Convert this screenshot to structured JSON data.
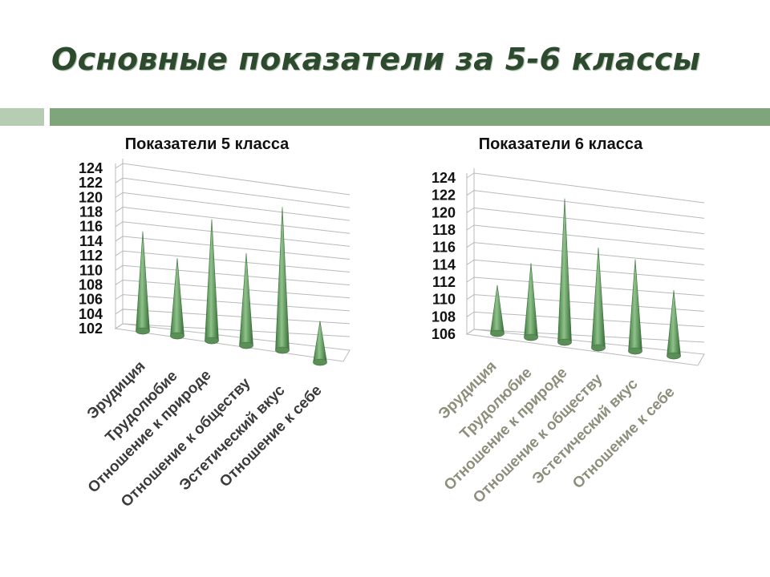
{
  "slide": {
    "title": "Основные показатели за 5-6 классы",
    "colors": {
      "title": "#2e4a2e",
      "accent_bar": "#7ea67a",
      "accent_bar_light": "#b6ccb3",
      "cone": "#5f9a5d"
    }
  },
  "chart_data": [
    {
      "type": "bar",
      "shape": "cone-3d",
      "title": "Показатели 5 класса",
      "categories": [
        "Эрудиция",
        "Трудолюбие",
        "Отношение к природе",
        "Отношение к обществу",
        "Эстетический вкус",
        "Отношение к себе"
      ],
      "values": [
        115,
        112,
        118,
        114,
        121,
        107
      ],
      "ylim": [
        102,
        124
      ],
      "yticks": [
        102,
        104,
        106,
        108,
        110,
        112,
        114,
        116,
        118,
        120,
        122,
        124
      ],
      "xlabel": "",
      "ylabel": "",
      "grid": true,
      "category_label_color": "#3b3b3b"
    },
    {
      "type": "bar",
      "shape": "cone-3d",
      "title": "Показатели 6 класса",
      "categories": [
        "Эрудиция",
        "Трудолюбие",
        "Отношение к природе",
        "Отношение к обществу",
        "Эстетический вкус",
        "Отношение к себе"
      ],
      "values": [
        111,
        114,
        122,
        117,
        116,
        113
      ],
      "ylim": [
        106,
        124
      ],
      "yticks": [
        106,
        108,
        110,
        112,
        114,
        116,
        118,
        120,
        122,
        124
      ],
      "xlabel": "",
      "ylabel": "",
      "grid": true,
      "category_label_color": "#8e8e7c"
    }
  ]
}
